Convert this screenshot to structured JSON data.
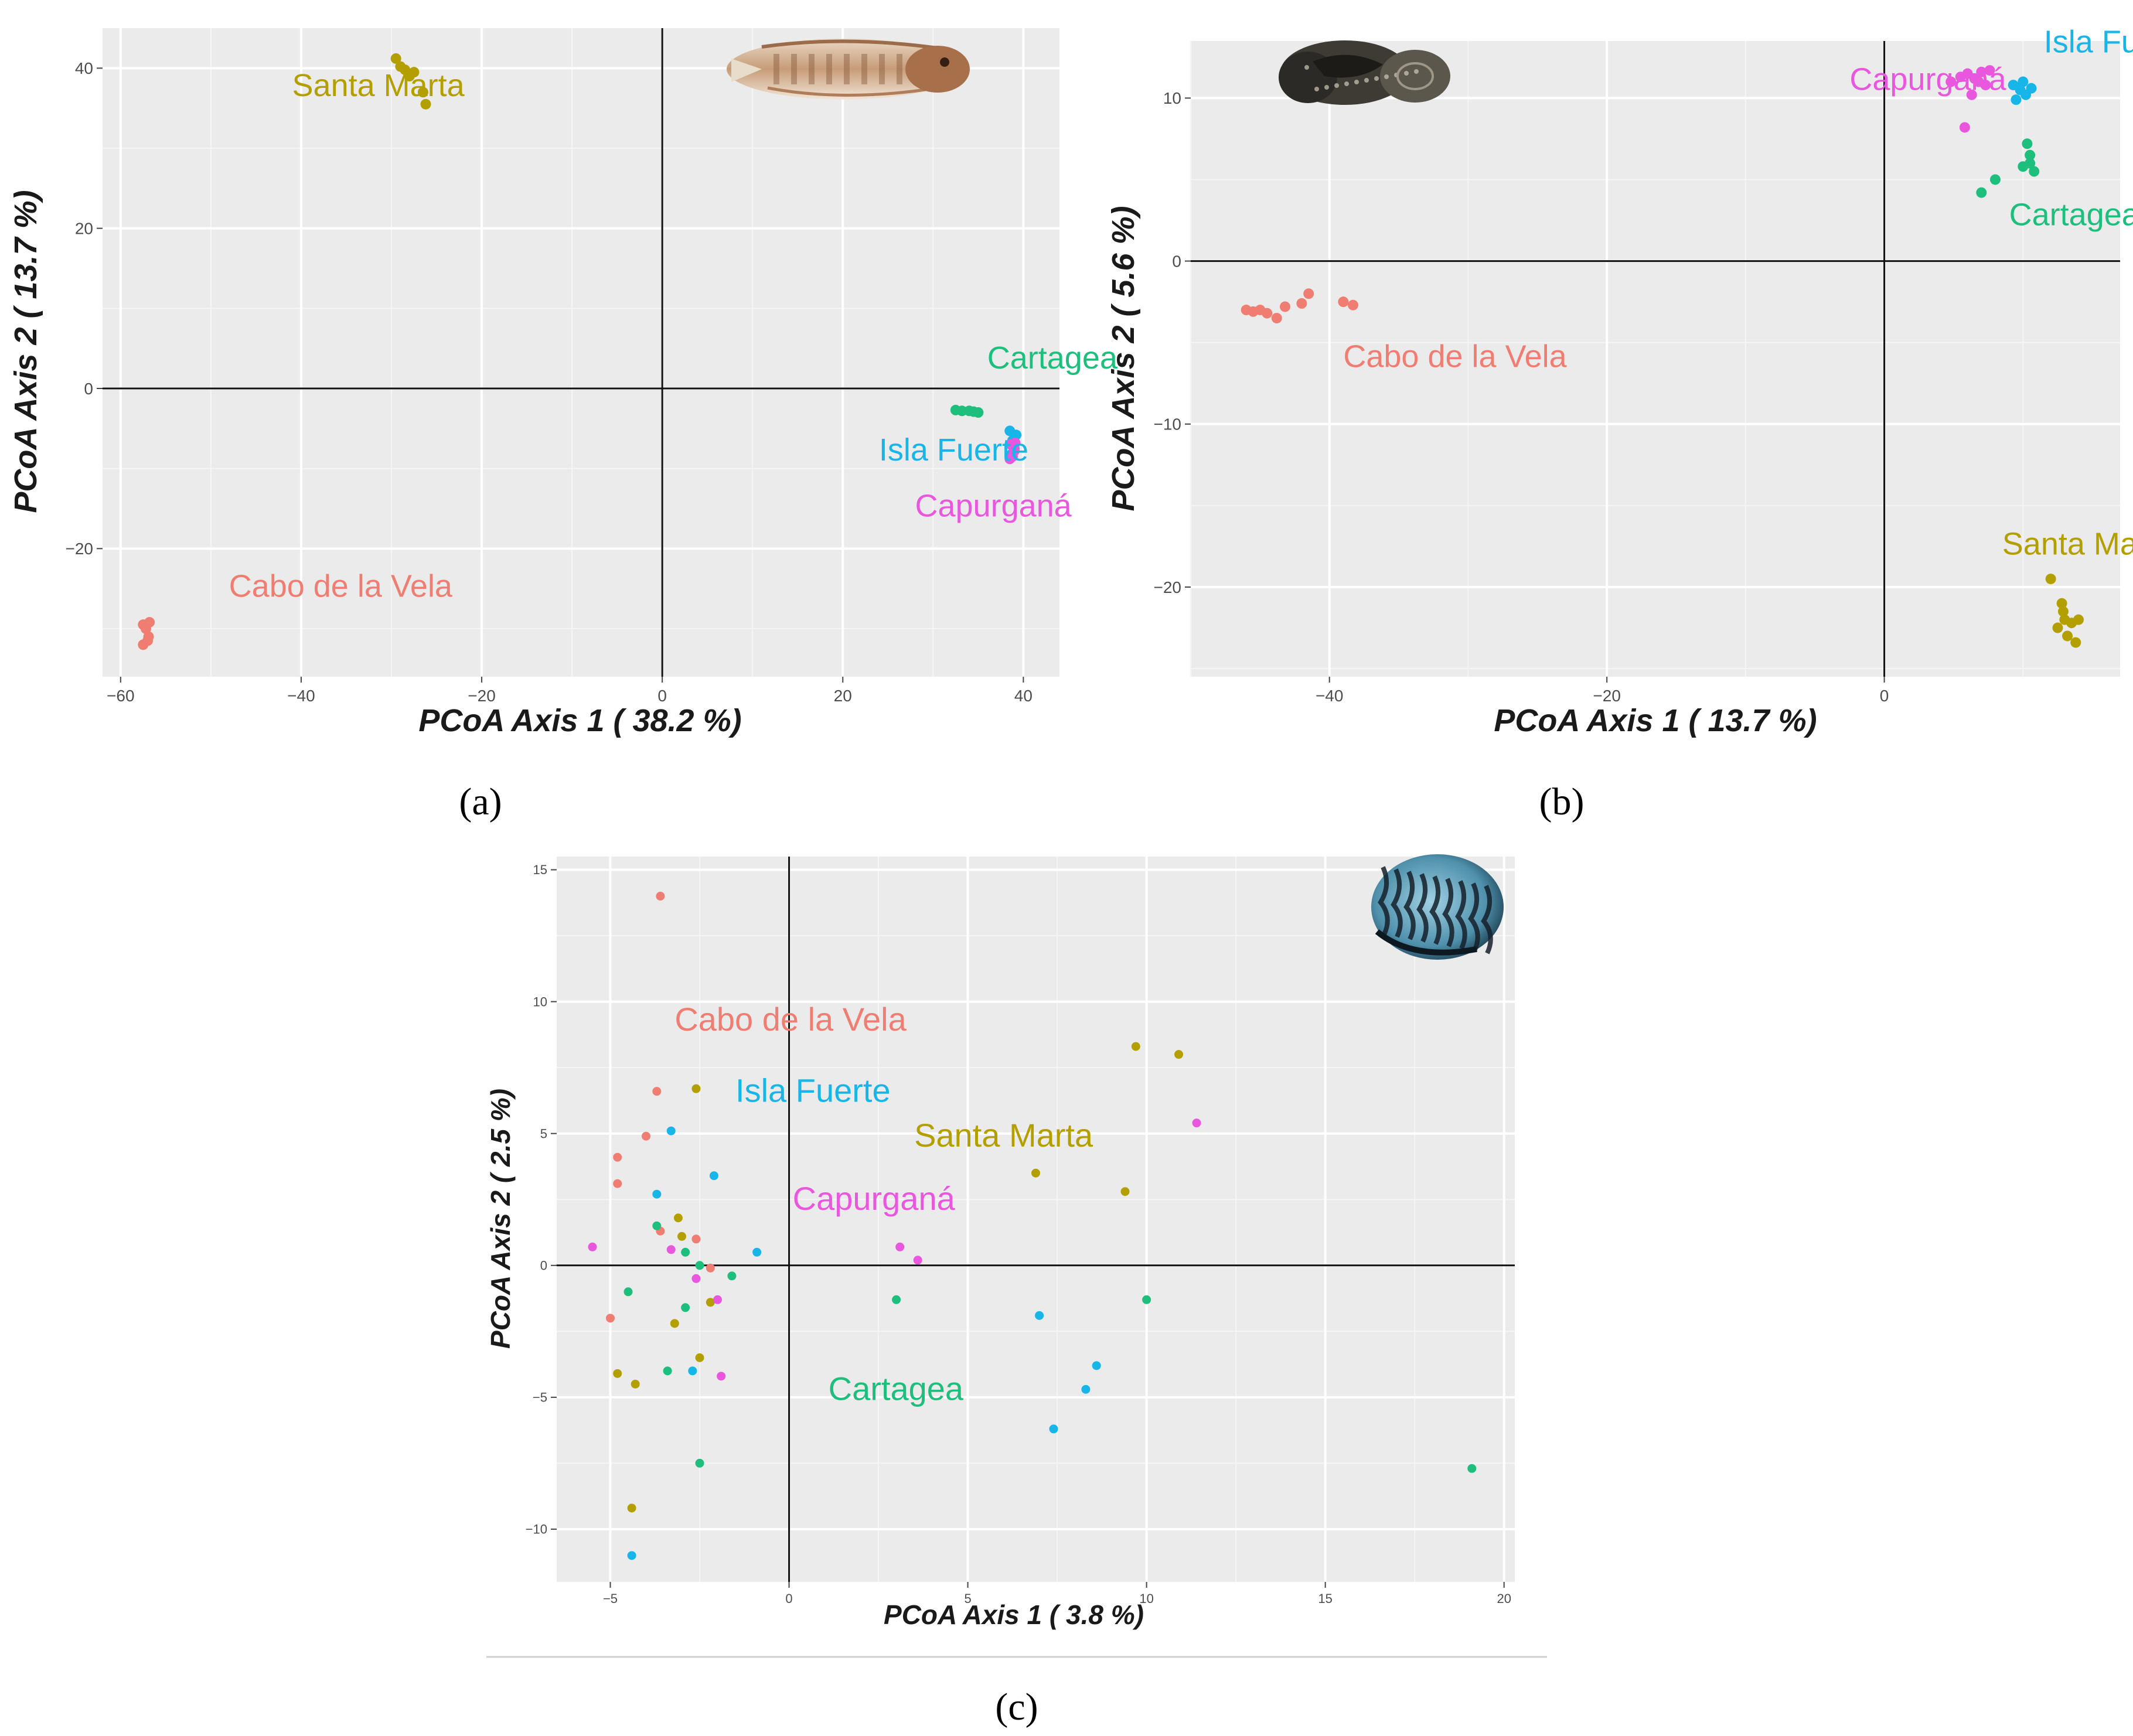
{
  "chart_data": [
    {
      "panel": "a",
      "type": "scatter",
      "xlabel": "PCoA Axis 1 ( 38.2 %)",
      "ylabel": "PCoA Axis 2 ( 13.7 %)",
      "xlim": [
        -62,
        44
      ],
      "ylim": [
        -36,
        45
      ],
      "xticks": [
        -60,
        -40,
        -20,
        0,
        20,
        40
      ],
      "yticks": [
        -20,
        0,
        20,
        40
      ],
      "grid": true,
      "image_icon": "fish-icon",
      "series": [
        {
          "name": "Santa Marta",
          "color": "#b3a000",
          "points": [
            [
              -29.5,
              41.2
            ],
            [
              -29,
              40.2
            ],
            [
              -28.5,
              39.8
            ],
            [
              -28,
              39.0
            ],
            [
              -27.5,
              39.5
            ],
            [
              -26.5,
              37.0
            ],
            [
              -26.2,
              35.5
            ]
          ]
        },
        {
          "name": "Cartagea",
          "color": "#1ebf7d",
          "points": [
            [
              32.5,
              -2.7
            ],
            [
              33.2,
              -2.8
            ],
            [
              34,
              -2.8
            ],
            [
              34.5,
              -2.9
            ],
            [
              35,
              -3.0
            ]
          ]
        },
        {
          "name": "Isla Fuerte",
          "color": "#17b5e8",
          "points": [
            [
              38.5,
              -5.3
            ],
            [
              39.2,
              -5.8
            ],
            [
              38.8,
              -6.5
            ],
            [
              39,
              -7.5
            ],
            [
              38.7,
              -8.2
            ]
          ]
        },
        {
          "name": "Capurganá",
          "color": "#e957df",
          "points": [
            [
              38.6,
              -7.0
            ],
            [
              39.1,
              -6.8
            ],
            [
              38.8,
              -8.5
            ],
            [
              38.5,
              -8.8
            ],
            [
              39.0,
              -7.8
            ]
          ]
        },
        {
          "name": "Cabo de la Vela",
          "color": "#f07d72",
          "points": [
            [
              -57.5,
              -29.5
            ],
            [
              -56.8,
              -29.2
            ],
            [
              -57.2,
              -30.0
            ],
            [
              -57,
              -31.5
            ],
            [
              -57.5,
              -32.0
            ],
            [
              -56.9,
              -31.0
            ]
          ]
        }
      ],
      "labels": [
        {
          "text": "Santa Marta",
          "x": -41,
          "y": 36.5,
          "color": "#b3a000"
        },
        {
          "text": "Cartagea",
          "x": 36,
          "y": 2.5,
          "color": "#1ebf7d"
        },
        {
          "text": "Isla Fuerte",
          "x": 24,
          "y": -9,
          "color": "#17b5e8"
        },
        {
          "text": "Capurganá",
          "x": 28,
          "y": -16,
          "color": "#e957df"
        },
        {
          "text": "Cabo de la Vela",
          "x": -48,
          "y": -26,
          "color": "#f07d72"
        }
      ],
      "caption": "(a)"
    },
    {
      "panel": "b",
      "type": "scatter",
      "xlabel": "PCoA Axis 1 ( 13.7 %)",
      "ylabel": "PCoA Axis 2 ( 5.6 %)",
      "xlim": [
        -50,
        17
      ],
      "ylim": [
        -25.5,
        13.5
      ],
      "xticks": [
        -40,
        -20,
        0
      ],
      "yticks": [
        -20,
        -10,
        0,
        10
      ],
      "grid": true,
      "image_icon": "sea-slug-icon",
      "series": [
        {
          "name": "Cabo de la Vela",
          "color": "#f07d72",
          "points": [
            [
              -46,
              -3
            ],
            [
              -45.5,
              -3.1
            ],
            [
              -45,
              -3.0
            ],
            [
              -44.5,
              -3.2
            ],
            [
              -43.8,
              -3.5
            ],
            [
              -43.2,
              -2.8
            ],
            [
              -42,
              -2.6
            ],
            [
              -41.5,
              -2.0
            ],
            [
              -39,
              -2.5
            ],
            [
              -38.3,
              -2.7
            ]
          ]
        },
        {
          "name": "Capurganá",
          "color": "#e957df",
          "points": [
            [
              4.8,
              11.0
            ],
            [
              5.5,
              11.3
            ],
            [
              6,
              11.5
            ],
            [
              6.5,
              11.2
            ],
            [
              7,
              11.6
            ],
            [
              7.3,
              10.8
            ],
            [
              6.3,
              10.2
            ],
            [
              5.8,
              8.2
            ],
            [
              6.8,
              11.0
            ],
            [
              7.6,
              11.7
            ]
          ]
        },
        {
          "name": "Isla Fuerte",
          "color": "#17b5e8",
          "points": [
            [
              9.3,
              10.8
            ],
            [
              9.8,
              10.5
            ],
            [
              10.2,
              10.2
            ],
            [
              10.6,
              10.6
            ],
            [
              9.5,
              9.9
            ],
            [
              10.0,
              11.0
            ]
          ]
        },
        {
          "name": "Cartagea",
          "color": "#1ebf7d",
          "points": [
            [
              7.0,
              4.2
            ],
            [
              8.0,
              5.0
            ],
            [
              10,
              5.8
            ],
            [
              10.5,
              6.0
            ],
            [
              10.5,
              6.5
            ],
            [
              10.8,
              5.5
            ],
            [
              10.3,
              7.2
            ]
          ]
        },
        {
          "name": "Santa Marta",
          "color": "#b3a000",
          "points": [
            [
              12,
              -19.5
            ],
            [
              12.8,
              -21
            ],
            [
              13,
              -22
            ],
            [
              12.5,
              -22.5
            ],
            [
              13.5,
              -22.2
            ],
            [
              13.2,
              -23.0
            ],
            [
              13.8,
              -23.4
            ],
            [
              14,
              -22.0
            ],
            [
              12.9,
              -21.5
            ]
          ]
        }
      ],
      "labels": [
        {
          "text": "Isla Fuerte",
          "x": 11.5,
          "y": 12.8,
          "color": "#17b5e8"
        },
        {
          "text": "Capurganá",
          "x": -2.5,
          "y": 10.5,
          "color": "#e957df"
        },
        {
          "text": "Cartagea",
          "x": 9,
          "y": 2.2,
          "color": "#1ebf7d"
        },
        {
          "text": "Cabo de la Vela",
          "x": -39,
          "y": -6.5,
          "color": "#f07d72"
        },
        {
          "text": "Santa Marta",
          "x": 8.5,
          "y": -18.0,
          "color": "#b3a000"
        }
      ],
      "caption": "(b)"
    },
    {
      "panel": "c",
      "type": "scatter",
      "xlabel": "PCoA Axis 1 ( 3.8 %)",
      "ylabel": "PCoA Axis 2 ( 2.5 %)",
      "xlim": [
        -6.5,
        20.3
      ],
      "ylim": [
        -12,
        15.5
      ],
      "xticks": [
        -5,
        0,
        5,
        10,
        15,
        20
      ],
      "yticks": [
        -10,
        -5,
        0,
        5,
        10,
        15
      ],
      "grid": true,
      "image_icon": "nerite-shell-icon",
      "series": [
        {
          "name": "Cabo de la Vela",
          "color": "#f07d72",
          "points": [
            [
              -3.6,
              14.0
            ],
            [
              -3.7,
              6.6
            ],
            [
              -4.0,
              4.9
            ],
            [
              -4.8,
              4.1
            ],
            [
              -4.8,
              3.1
            ],
            [
              -5.0,
              -2.0
            ],
            [
              -3.6,
              1.3
            ],
            [
              -2.6,
              1.0
            ],
            [
              -2.2,
              -0.1
            ]
          ]
        },
        {
          "name": "Santa Marta",
          "color": "#b3a000",
          "points": [
            [
              -2.6,
              6.7
            ],
            [
              -3.1,
              1.8
            ],
            [
              -3.0,
              1.1
            ],
            [
              -3.2,
              -2.2
            ],
            [
              -2.5,
              -3.5
            ],
            [
              -2.2,
              -1.4
            ],
            [
              -4.8,
              -4.1
            ],
            [
              -4.3,
              -4.5
            ],
            [
              -4.4,
              -9.2
            ],
            [
              9.7,
              8.3
            ],
            [
              10.9,
              8.0
            ],
            [
              6.9,
              3.5
            ],
            [
              9.4,
              2.8
            ]
          ]
        },
        {
          "name": "Isla Fuerte",
          "color": "#17b5e8",
          "points": [
            [
              -3.3,
              5.1
            ],
            [
              -2.1,
              3.4
            ],
            [
              -3.7,
              2.7
            ],
            [
              -0.9,
              0.5
            ],
            [
              -2.7,
              -4.0
            ],
            [
              -4.4,
              -11.0
            ],
            [
              7.0,
              -1.9
            ],
            [
              8.6,
              -3.8
            ],
            [
              8.3,
              -4.7
            ],
            [
              7.4,
              -6.2
            ]
          ]
        },
        {
          "name": "Cartagea",
          "color": "#1ebf7d",
          "points": [
            [
              -3.7,
              1.5
            ],
            [
              -2.9,
              0.5
            ],
            [
              -2.5,
              0.0
            ],
            [
              -1.6,
              -0.4
            ],
            [
              -4.5,
              -1.0
            ],
            [
              -2.9,
              -1.6
            ],
            [
              -3.4,
              -4.0
            ],
            [
              -2.5,
              -7.5
            ],
            [
              3.0,
              -1.3
            ],
            [
              10.0,
              -1.3
            ],
            [
              19.1,
              -7.7
            ]
          ]
        },
        {
          "name": "Capurganá",
          "color": "#e957df",
          "points": [
            [
              -5.5,
              0.7
            ],
            [
              -3.3,
              0.6
            ],
            [
              -2.6,
              -0.5
            ],
            [
              -2.0,
              -1.3
            ],
            [
              -1.9,
              -4.2
            ],
            [
              3.1,
              0.7
            ],
            [
              3.6,
              0.2
            ],
            [
              11.4,
              5.4
            ]
          ]
        }
      ],
      "labels": [
        {
          "text": "Cabo de la Vela",
          "x": -3.2,
          "y": 8.9,
          "color": "#f07d72"
        },
        {
          "text": "Isla Fuerte",
          "x": -1.5,
          "y": 6.2,
          "color": "#17b5e8"
        },
        {
          "text": "Santa Marta",
          "x": 3.5,
          "y": 4.5,
          "color": "#b3a000"
        },
        {
          "text": "Capurganá",
          "x": 0.1,
          "y": 2.1,
          "color": "#e957df"
        },
        {
          "text": "Cartagea",
          "x": 1.1,
          "y": -5.1,
          "color": "#1ebf7d"
        }
      ],
      "caption": "(c)"
    }
  ]
}
